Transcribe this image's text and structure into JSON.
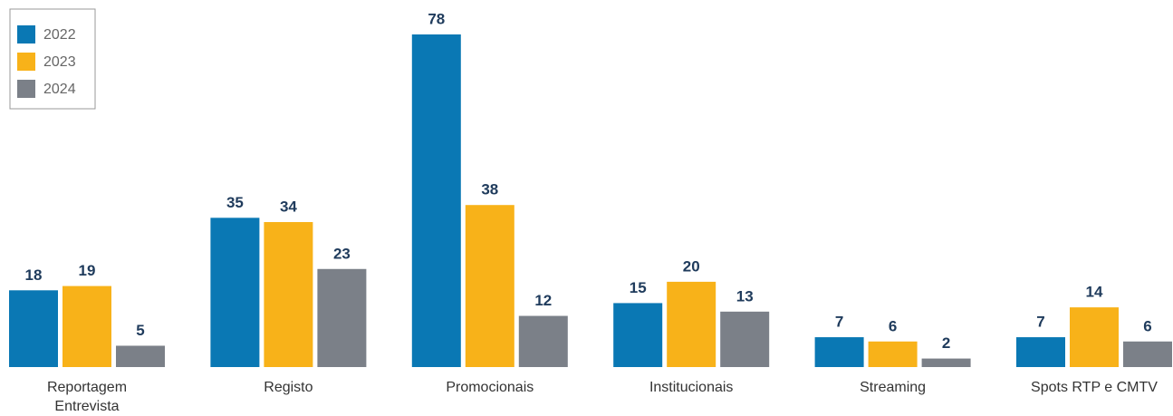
{
  "chart_data": {
    "type": "bar",
    "categories": [
      "Reportagem\nEntrevista",
      "Registo",
      "Promocionais",
      "Institucionais",
      "Streaming",
      "Spots RTP e CMTV"
    ],
    "series": [
      {
        "name": "2022",
        "color": "#0a78b4",
        "values": [
          18,
          35,
          78,
          15,
          7,
          7
        ]
      },
      {
        "name": "2023",
        "color": "#f8b219",
        "values": [
          19,
          34,
          38,
          20,
          6,
          14
        ]
      },
      {
        "name": "2024",
        "color": "#7b8088",
        "values": [
          5,
          23,
          12,
          13,
          2,
          6
        ]
      }
    ],
    "legend": "top-left"
  }
}
